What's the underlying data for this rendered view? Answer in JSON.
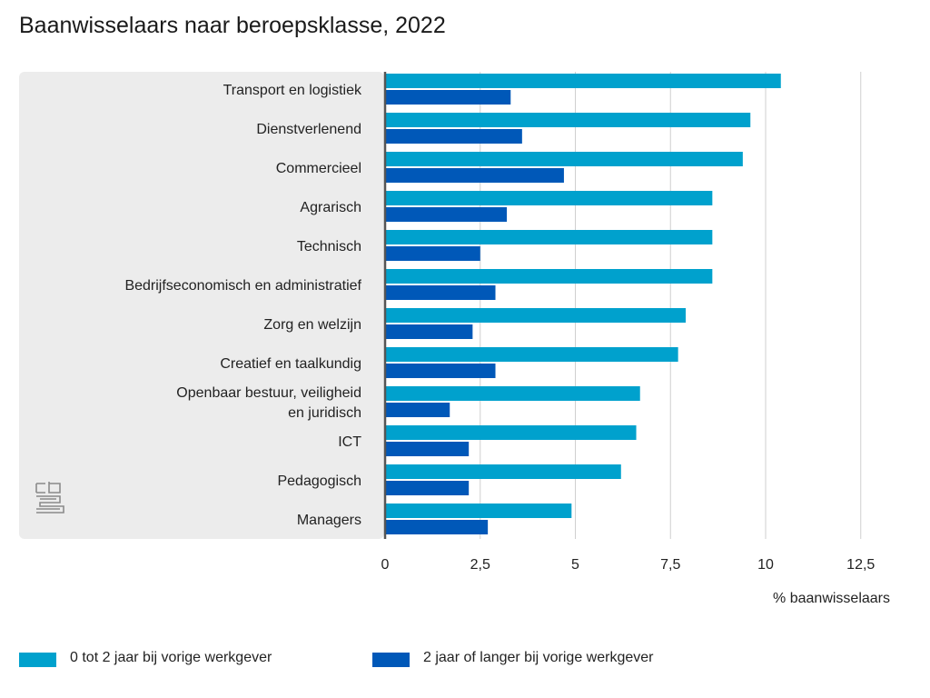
{
  "title": "Baanwisselaars naar beroepsklasse, 2022",
  "chart_data": {
    "type": "bar",
    "orientation": "horizontal",
    "title": "Baanwisselaars naar beroepsklasse, 2022",
    "xlabel": "% baanwisselaars",
    "ylabel": "",
    "xlim": [
      0,
      12.5
    ],
    "xticks": [
      0,
      2.5,
      5,
      7.5,
      10,
      12.5
    ],
    "xtick_labels": [
      "0",
      "2,5",
      "5",
      "7,5",
      "10",
      "12,5"
    ],
    "grid": "vertical",
    "legend_position": "bottom",
    "categories": [
      [
        "Transport en logistiek"
      ],
      [
        "Dienstverlenend"
      ],
      [
        "Commercieel"
      ],
      [
        "Agrarisch"
      ],
      [
        "Technisch"
      ],
      [
        "Bedrijfseconomisch en administratief"
      ],
      [
        "Zorg en welzijn"
      ],
      [
        "Creatief en taalkundig"
      ],
      [
        "Openbaar bestuur, veiligheid",
        "en juridisch"
      ],
      [
        "ICT"
      ],
      [
        "Pedagogisch"
      ],
      [
        "Managers"
      ]
    ],
    "series": [
      {
        "name": "0 tot 2 jaar bij vorige werkgever",
        "color": "#00a1cd",
        "values": [
          10.4,
          9.6,
          9.4,
          8.6,
          8.6,
          8.6,
          7.9,
          7.7,
          6.7,
          6.6,
          6.2,
          4.9
        ]
      },
      {
        "name": "2 jaar of langer bij vorige werkgever",
        "color": "#0058b8",
        "values": [
          3.3,
          3.6,
          4.7,
          3.2,
          2.5,
          2.9,
          2.3,
          2.9,
          1.7,
          2.2,
          2.2,
          2.7
        ]
      }
    ]
  },
  "colors": {
    "plot_background": "#ececec",
    "gridline": "#cfcfcf",
    "axis_line": "#555555"
  },
  "logo": "cbs"
}
